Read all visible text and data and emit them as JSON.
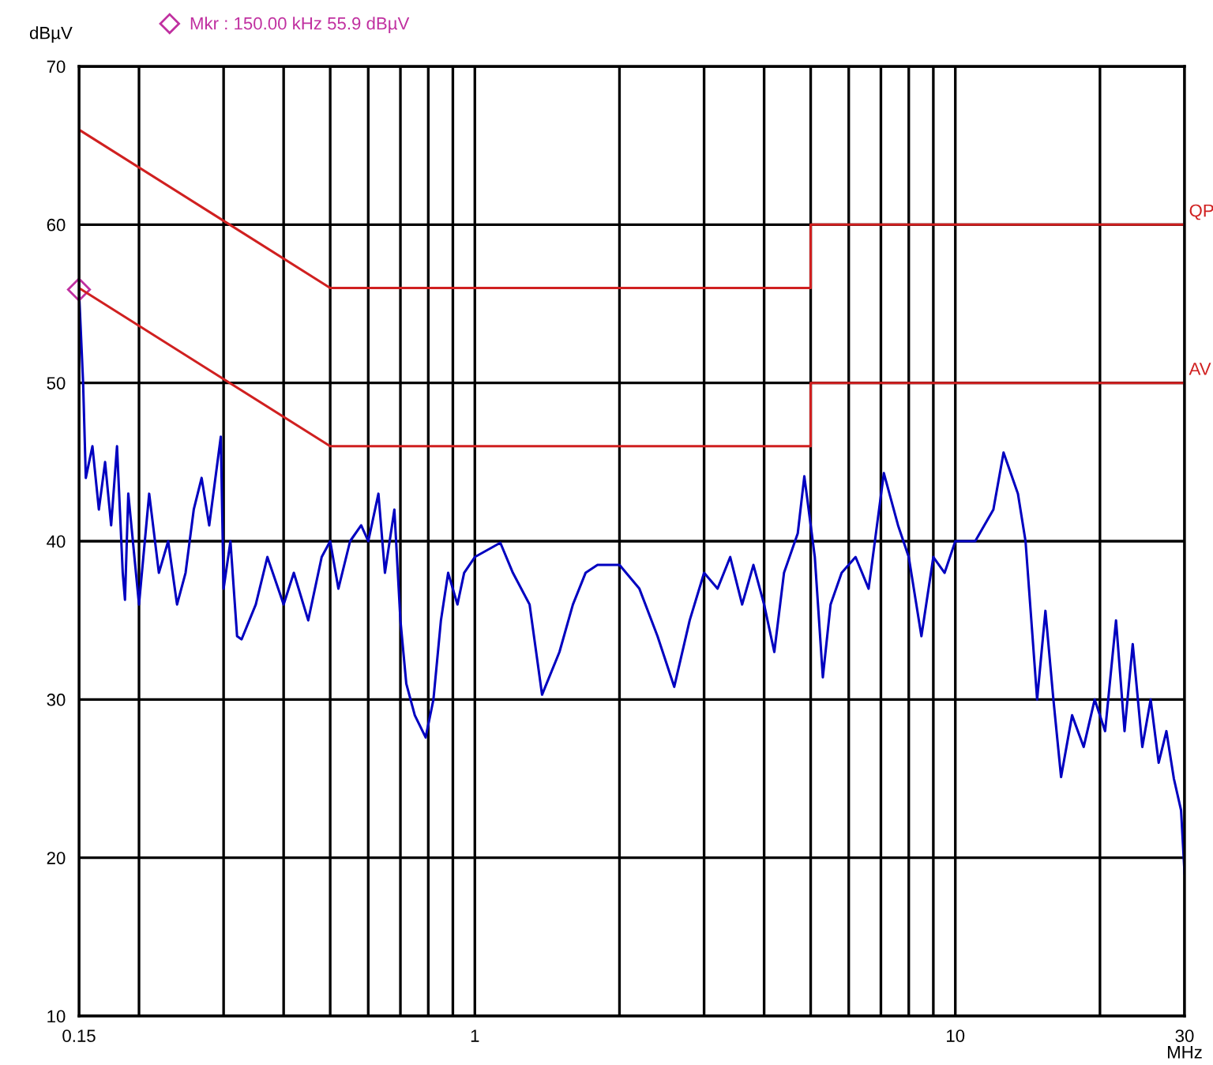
{
  "chart_data": {
    "type": "line",
    "ylabel": "dBµV",
    "xlabel": "MHz",
    "log": "x",
    "grid": true,
    "legend": false,
    "marker": "none",
    "line_style": "solid",
    "xlim": [
      0.15,
      30
    ],
    "ylim": [
      10,
      70
    ],
    "xticks": [
      0.15,
      {
        "value": 0.2,
        "label": null
      },
      {
        "value": 0.3,
        "label": null
      },
      {
        "value": 0.4,
        "label": null
      },
      {
        "value": 0.5,
        "label": null
      },
      {
        "value": 0.6,
        "label": null
      },
      {
        "value": 0.7,
        "label": null
      },
      {
        "value": 0.8,
        "label": null
      },
      {
        "value": 0.9,
        "label": null
      },
      1,
      {
        "value": 2,
        "label": null
      },
      {
        "value": 3,
        "label": null
      },
      {
        "value": 4,
        "label": null
      },
      {
        "value": 5,
        "label": null
      },
      {
        "value": 6,
        "label": null
      },
      {
        "value": 7,
        "label": null
      },
      {
        "value": 8,
        "label": null
      },
      {
        "value": 9,
        "label": null
      },
      10,
      {
        "value": 20,
        "label": null
      },
      30
    ],
    "yticks": [
      10,
      20,
      30,
      40,
      50,
      60,
      70
    ],
    "annotations": [
      "Mkr : 150.00 kHz 55.9 dBµV"
    ],
    "series": [
      {
        "color": "#0000c0",
        "x": [
          0.15,
          0.153,
          0.155,
          0.16,
          0.165,
          0.17,
          0.175,
          0.18,
          0.185,
          0.187,
          0.19,
          0.2,
          0.21,
          0.22,
          0.23,
          0.24,
          0.25,
          0.26,
          0.27,
          0.28,
          0.296,
          0.3,
          0.31,
          0.32,
          0.327,
          0.35,
          0.37,
          0.4,
          0.42,
          0.45,
          0.48,
          0.5,
          0.52,
          0.55,
          0.58,
          0.6,
          0.63,
          0.65,
          0.68,
          0.7,
          0.72,
          0.75,
          0.79,
          0.82,
          0.85,
          0.88,
          0.92,
          0.95,
          1.0,
          1.13,
          1.2,
          1.3,
          1.38,
          1.5,
          1.6,
          1.7,
          1.8,
          2.0,
          2.2,
          2.4,
          2.6,
          2.8,
          3.0,
          3.2,
          3.4,
          3.6,
          3.8,
          4.0,
          4.2,
          4.4,
          4.7,
          4.85,
          5.1,
          5.3,
          5.5,
          5.8,
          6.2,
          6.6,
          7.1,
          7.6,
          8.0,
          8.5,
          9.0,
          9.5,
          10,
          11,
          12,
          12.6,
          13.5,
          14,
          14.8,
          15.4,
          16,
          16.6,
          17.5,
          18.5,
          19.5,
          20.5,
          21.6,
          22.5,
          23.4,
          24.5,
          25.5,
          26.5,
          27.5,
          28.5,
          29.5,
          30
        ],
        "values": [
          55.9,
          50,
          44,
          46,
          42,
          45,
          41,
          46,
          38,
          36.3,
          43,
          36,
          43,
          38,
          40,
          36,
          38,
          42,
          44,
          41,
          46.6,
          37,
          40,
          34,
          33.8,
          36,
          39,
          36,
          38,
          35,
          39,
          40,
          37,
          40,
          41,
          40,
          43,
          38,
          42,
          35,
          31,
          29,
          27.6,
          30,
          35,
          38,
          36,
          38,
          39,
          39.9,
          38,
          36,
          30.3,
          33,
          36,
          38,
          38.5,
          38.5,
          37,
          34,
          30.8,
          35,
          38,
          37,
          39,
          36,
          38.5,
          36,
          33,
          38,
          40.5,
          44.1,
          39,
          31.4,
          36,
          38,
          39,
          37,
          44.3,
          41,
          39,
          34,
          39,
          38,
          40,
          40,
          42,
          45.6,
          43,
          40,
          30,
          35.6,
          30,
          25.1,
          29,
          27,
          30,
          28,
          35,
          28,
          33.5,
          27,
          30,
          26,
          28,
          25,
          23,
          19
        ]
      },
      {
        "name": "QP",
        "color": "#d02020",
        "x": [
          0.15,
          0.5,
          0.5,
          5,
          5,
          30
        ],
        "values": [
          66,
          56,
          56,
          56,
          60,
          60
        ]
      },
      {
        "name": "AV",
        "color": "#d02020",
        "x": [
          0.15,
          0.5,
          0.5,
          5,
          5,
          30
        ],
        "values": [
          56,
          46,
          46,
          46,
          50,
          50
        ]
      }
    ]
  }
}
